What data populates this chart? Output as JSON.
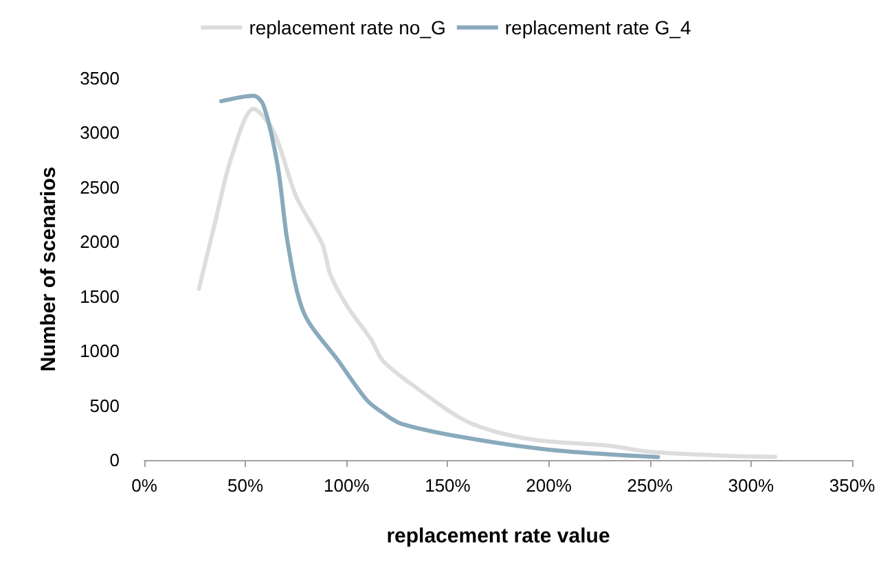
{
  "chart_data": {
    "type": "line",
    "xlabel": "replacement rate value",
    "ylabel": "Number of scenarios",
    "legend": "top",
    "marker": "none",
    "grid": false,
    "xlim": [
      0,
      350
    ],
    "xticks": [
      {
        "value": 0,
        "label": "0%"
      },
      {
        "value": 50,
        "label": "50%"
      },
      {
        "value": 100,
        "label": "100%"
      },
      {
        "value": 150,
        "label": "150%"
      },
      {
        "value": 200,
        "label": "200%"
      },
      {
        "value": 250,
        "label": "250%"
      },
      {
        "value": 300,
        "label": "300%"
      },
      {
        "value": 350,
        "label": "350%"
      }
    ],
    "ylim": [
      0,
      3500
    ],
    "yticks": [
      0,
      500,
      1000,
      1500,
      2000,
      2500,
      3000,
      3500
    ],
    "series": [
      {
        "name": "replacement rate no_G",
        "color": "#dddddd",
        "x": [
          27,
          35,
          43,
          54,
          64,
          75,
          88,
          92,
          101,
          112,
          118,
          134,
          160,
          191,
          230,
          250,
          287,
          312
        ],
        "values": [
          1570,
          2180,
          2770,
          3220,
          3010,
          2420,
          1980,
          1700,
          1390,
          1110,
          910,
          670,
          350,
          190,
          130,
          75,
          40,
          30
        ]
      },
      {
        "name": "replacement rate G_4",
        "color": "#89aabd",
        "x": [
          38,
          54,
          59,
          66,
          71,
          79,
          96,
          110,
          118,
          127,
          156,
          200,
          254
        ],
        "values": [
          3290,
          3340,
          3250,
          2690,
          1980,
          1345,
          908,
          550,
          432,
          333,
          214,
          95,
          27
        ]
      }
    ]
  }
}
